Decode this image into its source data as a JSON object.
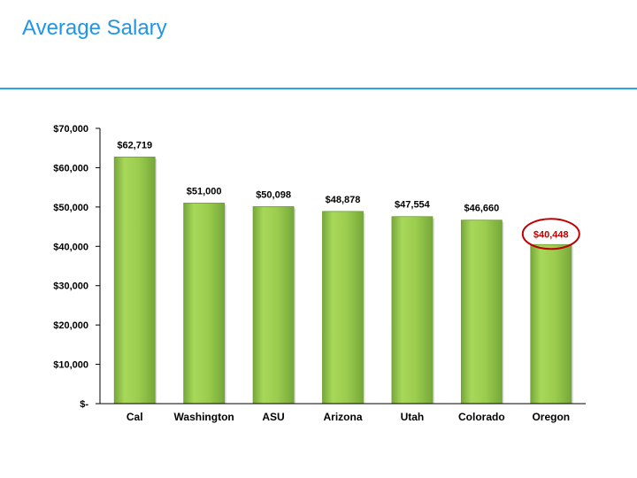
{
  "page": {
    "title": "Average Salary"
  },
  "colors": {
    "title": "#1f96e6",
    "rule": "#29a8e0",
    "bar_light": "#a8d85a",
    "bar_dark": "#76a83a",
    "highlight": "#c00000",
    "axis": "#000000"
  },
  "chart_data": {
    "type": "bar",
    "title": "",
    "xlabel": "",
    "ylabel": "",
    "categories": [
      "Cal",
      "Washington",
      "ASU",
      "Arizona",
      "Utah",
      "Colorado",
      "Oregon"
    ],
    "values": [
      62719,
      51000,
      50098,
      48878,
      47554,
      46660,
      40448
    ],
    "data_labels": [
      "$62,719",
      "$51,000",
      "$50,098",
      "$48,878",
      "$47,554",
      "$46,660",
      "$40,448"
    ],
    "ylim": [
      0,
      70000
    ],
    "yticks": [
      0,
      10000,
      20000,
      30000,
      40000,
      50000,
      60000,
      70000
    ],
    "ytick_labels": [
      "$-",
      "$10,000",
      "$20,000",
      "$30,000",
      "$40,000",
      "$50,000",
      "$60,000",
      "$70,000"
    ],
    "highlight_index": 6,
    "grid": false,
    "legend": "none"
  }
}
